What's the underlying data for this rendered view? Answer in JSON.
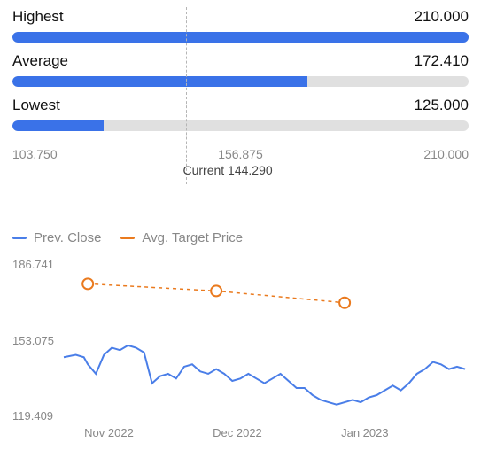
{
  "range": {
    "min": 103.75,
    "max": 210.0,
    "mid": 156.875,
    "min_label": "103.750",
    "mid_label": "156.875",
    "max_label": "210.000",
    "track_color": "#e0e0e0",
    "fill_color": "#3a72e8"
  },
  "bars": [
    {
      "label": "Highest",
      "value": 210.0,
      "value_label": "210.000"
    },
    {
      "label": "Average",
      "value": 172.41,
      "value_label": "172.410"
    },
    {
      "label": "Lowest",
      "value": 125.0,
      "value_label": "125.000"
    }
  ],
  "current": {
    "label": "Current 144.290",
    "value": 144.29,
    "line_color": "#b5b5b5",
    "text_color": "#444444"
  },
  "chart": {
    "type": "line",
    "ylim": [
      119.409,
      186.741
    ],
    "y_ticks": [
      "186.741",
      "153.075",
      "119.409"
    ],
    "x_ticks": [
      {
        "label": "Nov 2022",
        "pos": 0.06
      },
      {
        "label": "Dec 2022",
        "pos": 0.38
      },
      {
        "label": "Jan 2023",
        "pos": 0.7
      }
    ],
    "background_color": "#ffffff",
    "series": [
      {
        "name": "Prev. Close",
        "color": "#4a7ee8",
        "line_width": 2,
        "dash": null,
        "markers": false,
        "data": [
          [
            0.0,
            147
          ],
          [
            0.03,
            148
          ],
          [
            0.05,
            147
          ],
          [
            0.06,
            144
          ],
          [
            0.08,
            140
          ],
          [
            0.1,
            148
          ],
          [
            0.12,
            151
          ],
          [
            0.14,
            150
          ],
          [
            0.16,
            152
          ],
          [
            0.18,
            151
          ],
          [
            0.2,
            149
          ],
          [
            0.22,
            136
          ],
          [
            0.24,
            139
          ],
          [
            0.26,
            140
          ],
          [
            0.28,
            138
          ],
          [
            0.3,
            143
          ],
          [
            0.32,
            144
          ],
          [
            0.34,
            141
          ],
          [
            0.36,
            140
          ],
          [
            0.38,
            142
          ],
          [
            0.4,
            140
          ],
          [
            0.42,
            137
          ],
          [
            0.44,
            138
          ],
          [
            0.46,
            140
          ],
          [
            0.48,
            138
          ],
          [
            0.5,
            136
          ],
          [
            0.52,
            138
          ],
          [
            0.54,
            140
          ],
          [
            0.56,
            137
          ],
          [
            0.58,
            134
          ],
          [
            0.6,
            134
          ],
          [
            0.62,
            131
          ],
          [
            0.64,
            129
          ],
          [
            0.66,
            128
          ],
          [
            0.68,
            127
          ],
          [
            0.7,
            128
          ],
          [
            0.72,
            129
          ],
          [
            0.74,
            128
          ],
          [
            0.76,
            130
          ],
          [
            0.78,
            131
          ],
          [
            0.8,
            133
          ],
          [
            0.82,
            135
          ],
          [
            0.84,
            133
          ],
          [
            0.86,
            136
          ],
          [
            0.88,
            140
          ],
          [
            0.9,
            142
          ],
          [
            0.92,
            145
          ],
          [
            0.94,
            144
          ],
          [
            0.96,
            142
          ],
          [
            0.98,
            143
          ],
          [
            1.0,
            142
          ]
        ]
      },
      {
        "name": "Avg. Target Price",
        "color": "#ea7a1e",
        "line_width": 1.5,
        "dash": "4 4",
        "markers": true,
        "marker_radius": 6,
        "data": [
          [
            0.06,
            178
          ],
          [
            0.38,
            175
          ],
          [
            0.7,
            170
          ]
        ]
      }
    ],
    "legend": {
      "items": [
        "Prev. Close",
        "Avg. Target Price"
      ],
      "text_color": "#888888",
      "fontsize": 15
    },
    "axis_text_color": "#888888",
    "axis_fontsize": 13
  }
}
